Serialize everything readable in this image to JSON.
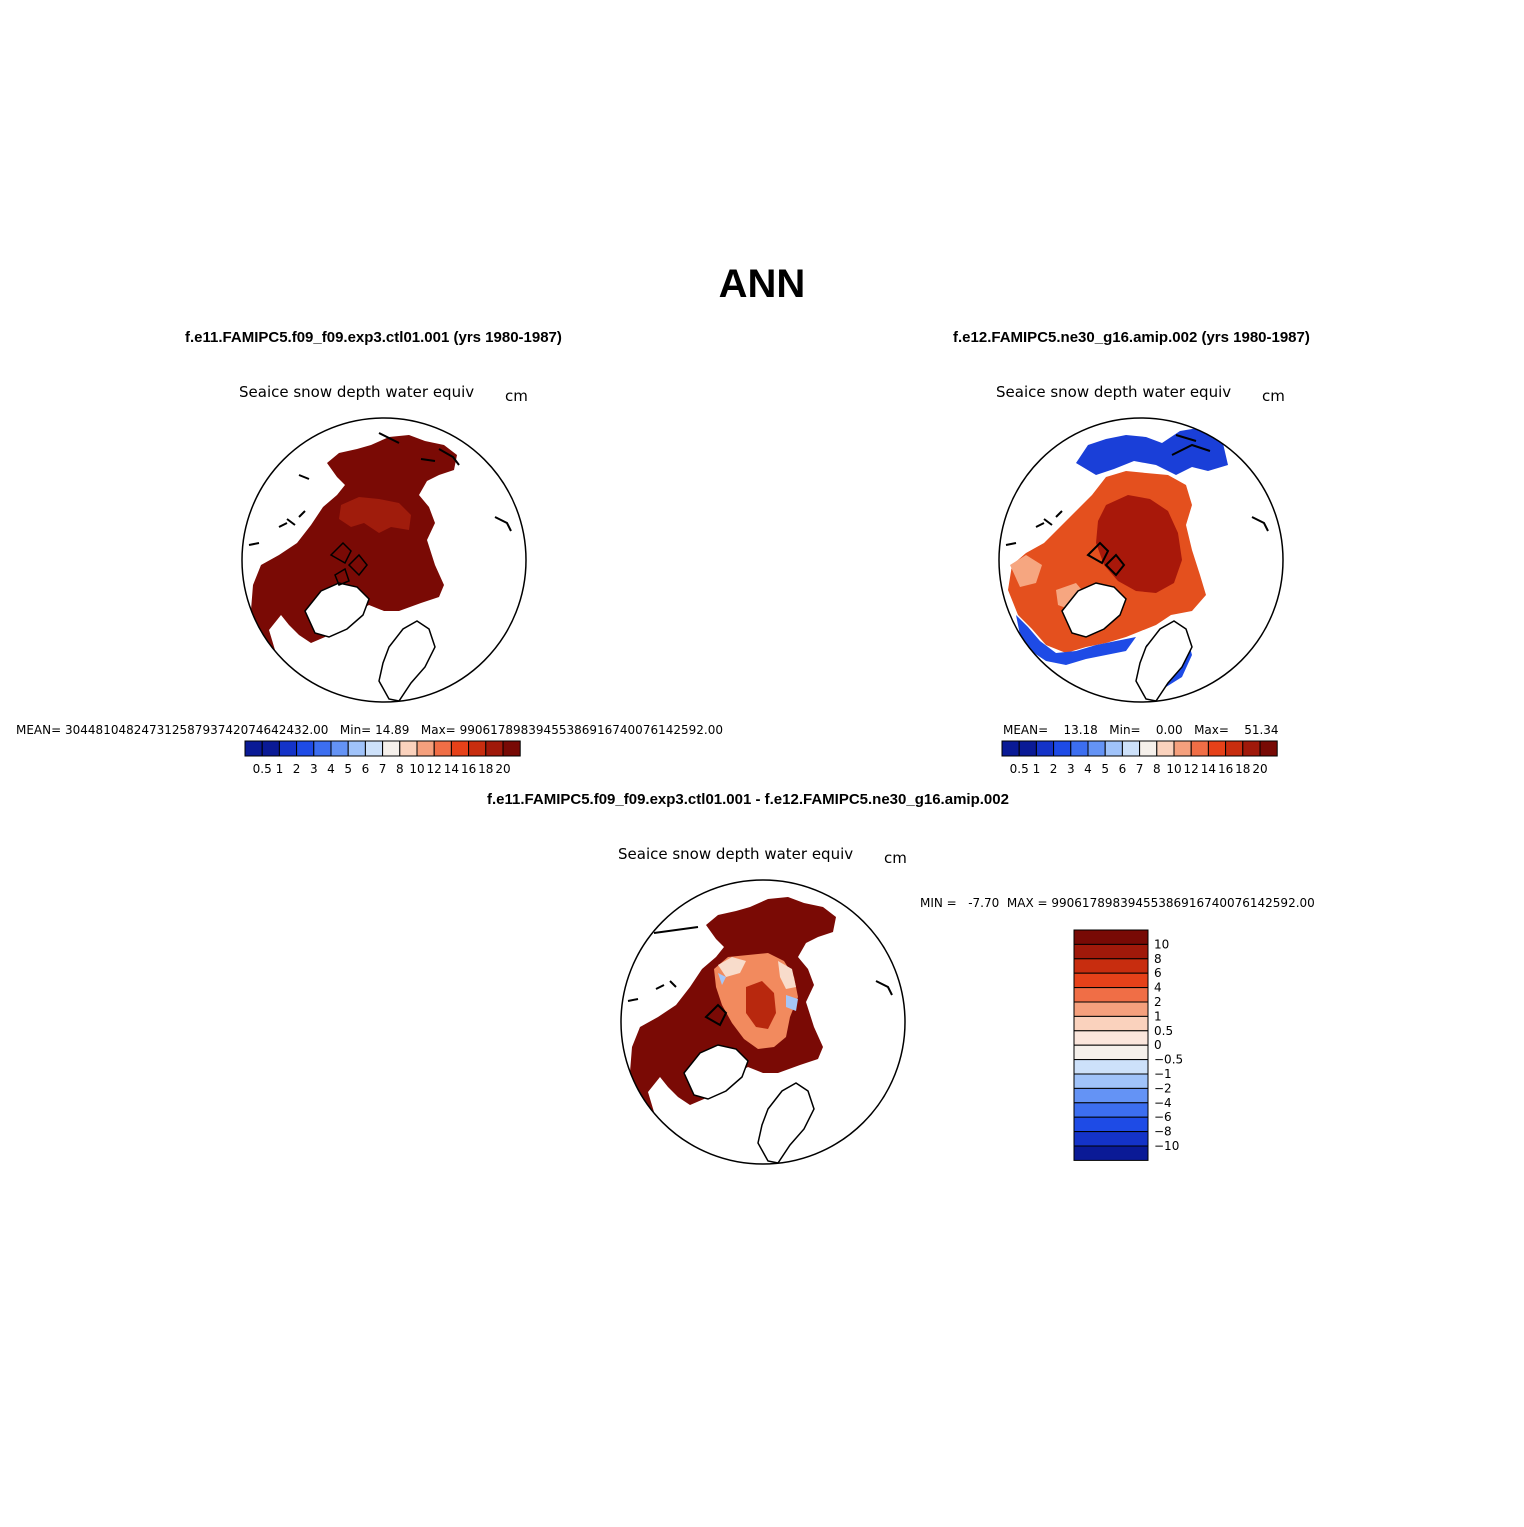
{
  "figure": {
    "title": "ANN"
  },
  "panels": [
    {
      "case_title": "f.e11.FAMIPC5.f09_f09.exp3.ctl01.001 (yrs 1980-1987)",
      "variable": "Seaice snow depth water equiv",
      "units": "cm",
      "stats": {
        "mean_label": "MEAN=",
        "mean": "3044810482473125879374207464243 2.00",
        "min_label": "Min=",
        "min": "14.89",
        "max_label": "Max=",
        "max": "990617898394553869167400761425 92.00"
      }
    },
    {
      "case_title": "f.e12.FAMIPC5.ne30_g16.amip.002 (yrs 1980-1987)",
      "variable": "Seaice snow depth water equiv",
      "units": "cm",
      "stats": {
        "mean_label": "MEAN=",
        "mean": "13.18",
        "min_label": "Min=",
        "min": "0.00",
        "max_label": "Max=",
        "max": "51.34"
      }
    },
    {
      "case_title": "f.e11.FAMIPC5.f09_f09.exp3.ctl01.001 - f.e12.FAMIPC5.ne30_g16.amip.002",
      "variable": "Seaice snow depth water equiv",
      "units": "cm",
      "stats": {
        "min_label": "MIN =",
        "min": "-7.70",
        "max_label": "MAX =",
        "max": "99061789839455386916740076142592.00"
      }
    }
  ],
  "colorbars": {
    "abs_levels": [
      "0.5",
      "1",
      "2",
      "3",
      "4",
      "5",
      "6",
      "7",
      "8",
      "10",
      "12",
      "14",
      "16",
      "18",
      "20"
    ],
    "abs_colors": [
      "#0a1a96",
      "#1433c8",
      "#1e4be6",
      "#3c6ef0",
      "#6493f5",
      "#a0c3fa",
      "#cde1fa",
      "#f5f0eb",
      "#fad2bd",
      "#f5a07d",
      "#f06e46",
      "#e64119",
      "#c82d0f",
      "#a0190a",
      "#780a05"
    ],
    "diff_levels": [
      "10",
      "8",
      "6",
      "4",
      "2",
      "1",
      "0.5",
      "0",
      "−0.5",
      "−1",
      "−2",
      "−4",
      "−6",
      "−8",
      "−10"
    ],
    "diff_colors": [
      "#780a05",
      "#a0190a",
      "#c82d0f",
      "#e64119",
      "#f06e46",
      "#f5a07d",
      "#fad2bd",
      "#fbe6dc",
      "#f5f0eb",
      "#cde1fa",
      "#a0c3fa",
      "#6493f5",
      "#3c6ef0",
      "#1e4be6",
      "#1433c8",
      "#0a1a96"
    ]
  }
}
